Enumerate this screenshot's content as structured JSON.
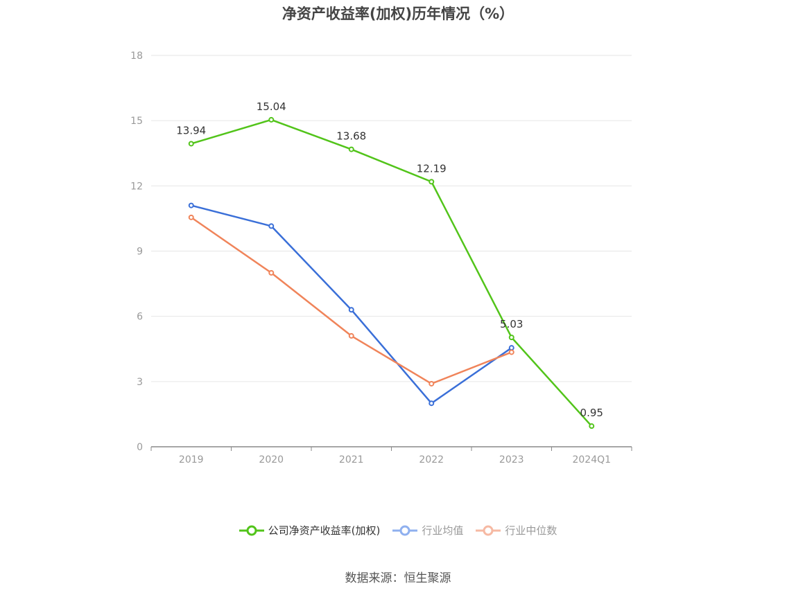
{
  "chart_data": {
    "type": "line",
    "title": "净资产收益率(加权)历年情况（%）",
    "categories": [
      "2019",
      "2020",
      "2021",
      "2022",
      "2023",
      "2024Q1"
    ],
    "ylim": [
      0,
      18
    ],
    "yticks": [
      0,
      3,
      6,
      9,
      12,
      15,
      18
    ],
    "grid": true,
    "legend_position": "bottom",
    "series": [
      {
        "name": "公司净资产收益率(加权)",
        "color": "#52c41a",
        "values": [
          13.94,
          15.04,
          13.68,
          12.19,
          5.03,
          0.95
        ],
        "labels": [
          "13.94",
          "15.04",
          "13.68",
          "12.19",
          "5.03",
          "0.95"
        ]
      },
      {
        "name": "行业均值",
        "color": "#3a6fd8",
        "values": [
          11.1,
          10.15,
          6.3,
          2.0,
          4.55,
          null
        ]
      },
      {
        "name": "行业中位数",
        "color": "#f0845a",
        "values": [
          10.55,
          8.0,
          5.1,
          2.9,
          4.35,
          null
        ]
      }
    ]
  },
  "legend": {
    "items": [
      {
        "label": "公司净资产收益率(加权)",
        "color": "#52c41a",
        "active": true
      },
      {
        "label": "行业均值",
        "color": "#8fb0ef",
        "active": false
      },
      {
        "label": "行业中位数",
        "color": "#f6b9a3",
        "active": false
      }
    ]
  },
  "source": "数据来源：恒生聚源"
}
